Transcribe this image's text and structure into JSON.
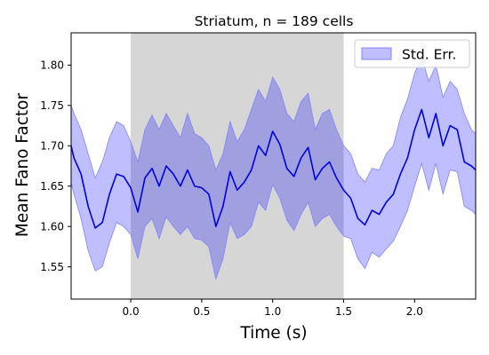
{
  "chart_data": {
    "type": "line",
    "title": "Striatum, n = 189 cells",
    "xlabel": "Time (s)",
    "ylabel": "Mean Fano Factor",
    "xlim": [
      -0.42,
      2.43
    ],
    "ylim": [
      1.51,
      1.84
    ],
    "xticks": [
      0.0,
      0.5,
      1.0,
      1.5,
      2.0
    ],
    "xtick_labels": [
      "0.0",
      "0.5",
      "1.0",
      "1.5",
      "2.0"
    ],
    "yticks": [
      1.55,
      1.6,
      1.65,
      1.7,
      1.75,
      1.8
    ],
    "ytick_labels": [
      "1.55",
      "1.60",
      "1.65",
      "1.70",
      "1.75",
      "1.80"
    ],
    "grid": false,
    "legend": {
      "position": "top-right",
      "entries": [
        "Std. Err."
      ]
    },
    "shaded_region": {
      "x_start": 0.0,
      "x_end": 1.5,
      "color": "#d6d6d6"
    },
    "series": [
      {
        "role": "mean",
        "color": "#0000dd",
        "x": [
          -0.42,
          -0.4,
          -0.35,
          -0.3,
          -0.25,
          -0.2,
          -0.15,
          -0.1,
          -0.05,
          0.0,
          0.05,
          0.1,
          0.15,
          0.2,
          0.25,
          0.3,
          0.35,
          0.4,
          0.45,
          0.5,
          0.55,
          0.6,
          0.65,
          0.7,
          0.75,
          0.8,
          0.85,
          0.9,
          0.95,
          1.0,
          1.05,
          1.1,
          1.15,
          1.2,
          1.25,
          1.3,
          1.35,
          1.4,
          1.45,
          1.5,
          1.55,
          1.6,
          1.65,
          1.7,
          1.75,
          1.8,
          1.85,
          1.9,
          1.95,
          2.0,
          2.05,
          2.1,
          2.15,
          2.2,
          2.25,
          2.3,
          2.35,
          2.4,
          2.43
        ],
        "y": [
          1.7,
          1.685,
          1.665,
          1.625,
          1.598,
          1.605,
          1.64,
          1.665,
          1.662,
          1.648,
          1.618,
          1.66,
          1.672,
          1.65,
          1.675,
          1.665,
          1.65,
          1.67,
          1.65,
          1.648,
          1.64,
          1.6,
          1.625,
          1.668,
          1.645,
          1.655,
          1.67,
          1.7,
          1.688,
          1.718,
          1.702,
          1.672,
          1.662,
          1.685,
          1.698,
          1.658,
          1.672,
          1.68,
          1.66,
          1.645,
          1.635,
          1.61,
          1.602,
          1.62,
          1.615,
          1.63,
          1.64,
          1.665,
          1.685,
          1.72,
          1.745,
          1.71,
          1.74,
          1.7,
          1.725,
          1.72,
          1.68,
          1.675,
          1.67
        ]
      },
      {
        "role": "upper",
        "name": "Std. Err.",
        "color": "#8080ff",
        "x": [
          -0.42,
          -0.4,
          -0.35,
          -0.3,
          -0.25,
          -0.2,
          -0.15,
          -0.1,
          -0.05,
          0.0,
          0.05,
          0.1,
          0.15,
          0.2,
          0.25,
          0.3,
          0.35,
          0.4,
          0.45,
          0.5,
          0.55,
          0.6,
          0.65,
          0.7,
          0.75,
          0.8,
          0.85,
          0.9,
          0.95,
          1.0,
          1.05,
          1.1,
          1.15,
          1.2,
          1.25,
          1.3,
          1.35,
          1.4,
          1.45,
          1.5,
          1.55,
          1.6,
          1.65,
          1.7,
          1.75,
          1.8,
          1.85,
          1.9,
          1.95,
          2.0,
          2.05,
          2.1,
          2.15,
          2.2,
          2.25,
          2.3,
          2.35,
          2.4,
          2.43
        ],
        "y": [
          1.75,
          1.74,
          1.72,
          1.69,
          1.66,
          1.68,
          1.71,
          1.73,
          1.725,
          1.705,
          1.68,
          1.72,
          1.738,
          1.72,
          1.74,
          1.725,
          1.71,
          1.74,
          1.715,
          1.71,
          1.7,
          1.67,
          1.69,
          1.73,
          1.705,
          1.72,
          1.745,
          1.77,
          1.755,
          1.785,
          1.77,
          1.74,
          1.73,
          1.755,
          1.765,
          1.72,
          1.74,
          1.745,
          1.72,
          1.7,
          1.69,
          1.665,
          1.655,
          1.672,
          1.67,
          1.69,
          1.7,
          1.735,
          1.758,
          1.79,
          1.81,
          1.78,
          1.8,
          1.76,
          1.78,
          1.77,
          1.74,
          1.72,
          1.715
        ]
      },
      {
        "role": "lower",
        "color": "#8080ff",
        "x": [
          -0.42,
          -0.4,
          -0.35,
          -0.3,
          -0.25,
          -0.2,
          -0.15,
          -0.1,
          -0.05,
          0.0,
          0.05,
          0.1,
          0.15,
          0.2,
          0.25,
          0.3,
          0.35,
          0.4,
          0.45,
          0.5,
          0.55,
          0.6,
          0.65,
          0.7,
          0.75,
          0.8,
          0.85,
          0.9,
          0.95,
          1.0,
          1.05,
          1.1,
          1.15,
          1.2,
          1.25,
          1.3,
          1.35,
          1.4,
          1.45,
          1.5,
          1.55,
          1.6,
          1.65,
          1.7,
          1.75,
          1.8,
          1.85,
          1.9,
          1.95,
          2.0,
          2.05,
          2.1,
          2.15,
          2.2,
          2.25,
          2.3,
          2.35,
          2.4,
          2.43
        ],
        "y": [
          1.655,
          1.64,
          1.61,
          1.57,
          1.545,
          1.55,
          1.58,
          1.605,
          1.6,
          1.59,
          1.56,
          1.6,
          1.61,
          1.585,
          1.612,
          1.6,
          1.59,
          1.6,
          1.585,
          1.583,
          1.575,
          1.535,
          1.56,
          1.605,
          1.585,
          1.59,
          1.6,
          1.63,
          1.62,
          1.652,
          1.635,
          1.608,
          1.595,
          1.615,
          1.63,
          1.6,
          1.61,
          1.615,
          1.6,
          1.588,
          1.585,
          1.56,
          1.548,
          1.568,
          1.562,
          1.572,
          1.582,
          1.6,
          1.62,
          1.65,
          1.678,
          1.645,
          1.678,
          1.64,
          1.67,
          1.668,
          1.625,
          1.62,
          1.615
        ]
      }
    ]
  }
}
